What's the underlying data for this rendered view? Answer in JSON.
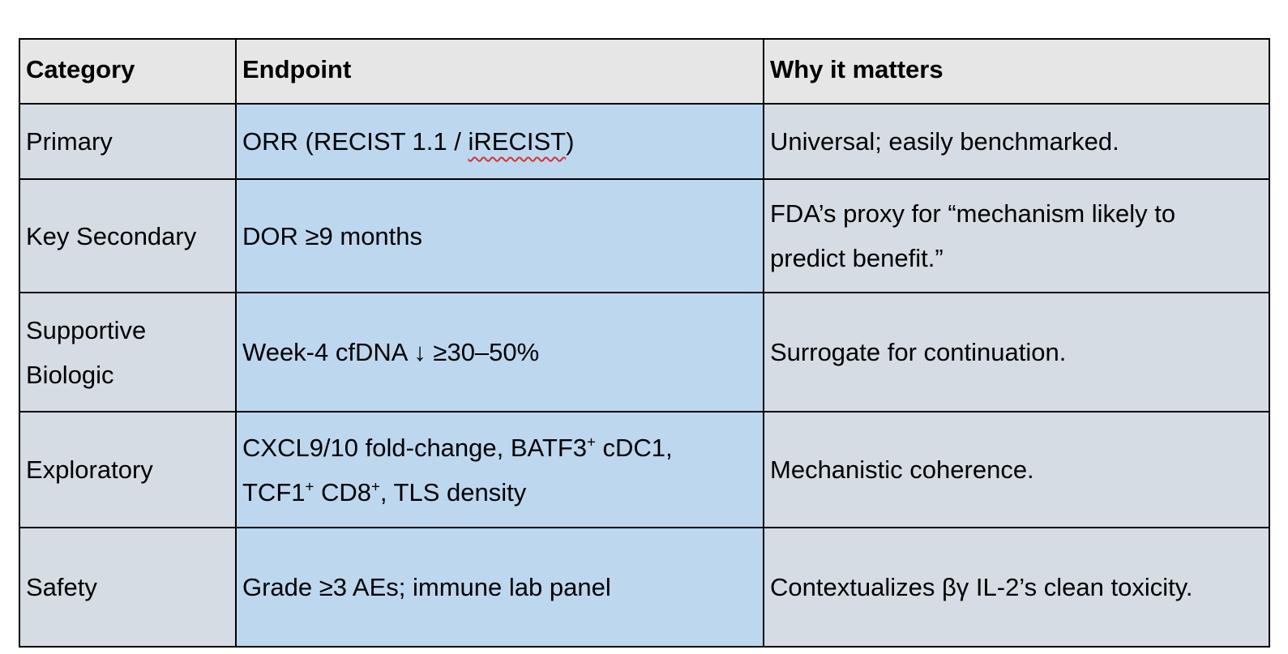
{
  "colors": {
    "page_bg": "#ffffff",
    "header_bg": "#e7e6e6",
    "category_bg": "#d6dce4",
    "endpoint_bg": "#bdd7ee",
    "why_bg": "#d6dce4",
    "border": "#000000",
    "text": "#000000",
    "spellcheck": "#d13434"
  },
  "table": {
    "header": {
      "cells": [
        "Category",
        "Endpoint",
        "Why it matters"
      ]
    },
    "rows": [
      {
        "category": "Primary",
        "endpoint": [
          {
            "text": "ORR (RECIST 1.1 / "
          },
          {
            "text": "iRECIST",
            "spellcheck": true
          },
          {
            "text": ")"
          }
        ],
        "why": "Universal; easily benchmarked."
      },
      {
        "category": "Key Secondary",
        "endpoint": [
          {
            "text": "DOR ≥9 months"
          }
        ],
        "why": "FDA’s proxy for “mechanism likely to predict benefit.”"
      },
      {
        "category": "Supportive Biologic",
        "endpoint": [
          {
            "text": "Week-4 cfDNA ↓ ≥30–50%"
          }
        ],
        "why": "Surrogate for continuation."
      },
      {
        "category": "Exploratory",
        "endpoint": [
          {
            "text": "CXCL9/10 fold-change, BATF3"
          },
          {
            "text": "+",
            "sup": true
          },
          {
            "text": " cDC1, TCF1"
          },
          {
            "text": "+",
            "sup": true
          },
          {
            "text": " CD8"
          },
          {
            "text": "+",
            "sup": true
          },
          {
            "text": ", TLS density"
          }
        ],
        "why": "Mechanistic coherence."
      },
      {
        "category": "Safety",
        "endpoint": [
          {
            "text": "Grade ≥3 AEs; immune lab panel"
          }
        ],
        "why": "Contextualizes βγ IL-2’s clean toxicity."
      }
    ]
  }
}
